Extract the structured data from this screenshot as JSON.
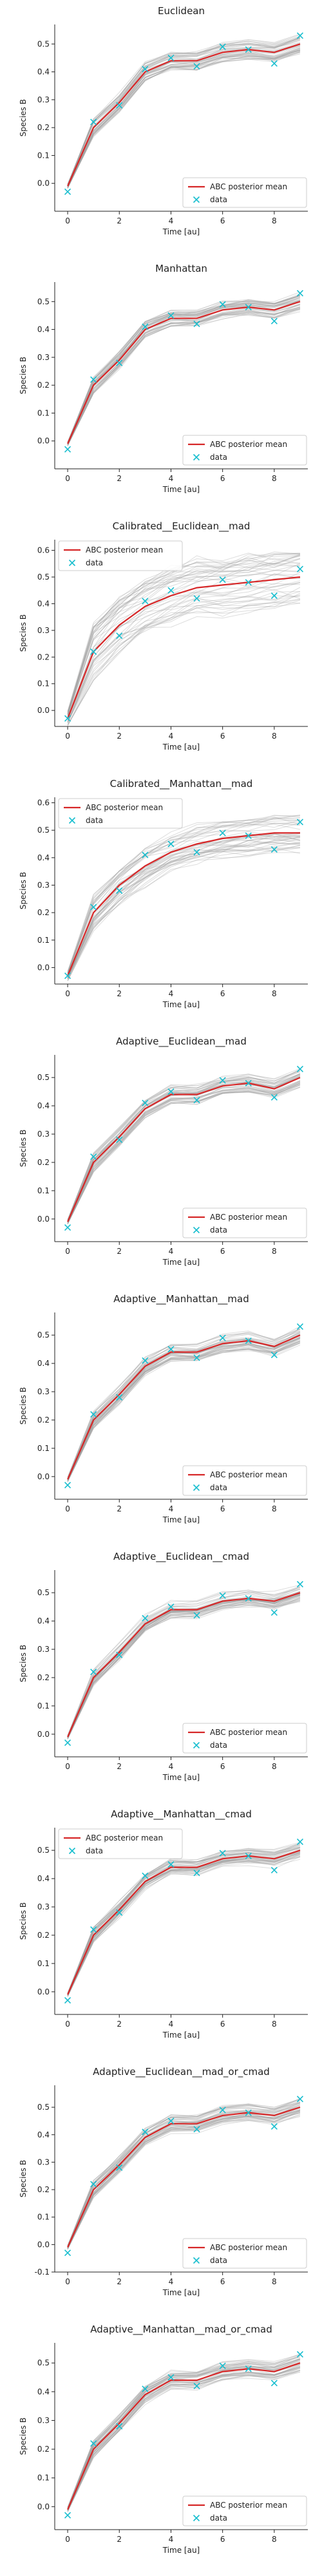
{
  "figure": {
    "description_free": true
  },
  "colors": {
    "mean_line": "#d62728",
    "data_marker": "#17becf",
    "posterior_lines": "#9e9e9e",
    "axis": "#222222"
  },
  "legend_labels": {
    "mean": "ABC posterior mean",
    "data": "data"
  },
  "chart_data": [
    {
      "type": "line",
      "title": "Euclidean",
      "xlabel": "Time [au]",
      "ylabel": "Species B",
      "xlim": [
        -0.5,
        9.3
      ],
      "ylim": [
        -0.1,
        0.57
      ],
      "yticks": [
        0.0,
        0.1,
        0.2,
        0.3,
        0.4,
        0.5
      ],
      "xticks": [
        0,
        2,
        4,
        6,
        8
      ],
      "legend_loc": "lower-right",
      "x": [
        0,
        1,
        2,
        3,
        4,
        5,
        6,
        7,
        8,
        9
      ],
      "series": [
        {
          "name": "ABC posterior mean",
          "values": [
            -0.01,
            0.2,
            0.29,
            0.4,
            0.44,
            0.44,
            0.47,
            0.48,
            0.47,
            0.5
          ]
        },
        {
          "name": "data",
          "values": [
            -0.03,
            0.22,
            0.28,
            0.41,
            0.45,
            0.42,
            0.49,
            0.48,
            0.43,
            0.53
          ]
        }
      ],
      "band": 0.03
    },
    {
      "type": "line",
      "title": "Manhattan",
      "xlabel": "Time [au]",
      "ylabel": "Species B",
      "xlim": [
        -0.5,
        9.3
      ],
      "ylim": [
        -0.1,
        0.57
      ],
      "yticks": [
        0.0,
        0.1,
        0.2,
        0.3,
        0.4,
        0.5
      ],
      "xticks": [
        0,
        2,
        4,
        6,
        8
      ],
      "legend_loc": "lower-right",
      "x": [
        0,
        1,
        2,
        3,
        4,
        5,
        6,
        7,
        8,
        9
      ],
      "series": [
        {
          "name": "ABC posterior mean",
          "values": [
            -0.01,
            0.2,
            0.29,
            0.4,
            0.44,
            0.44,
            0.47,
            0.48,
            0.47,
            0.5
          ]
        },
        {
          "name": "data",
          "values": [
            -0.03,
            0.22,
            0.28,
            0.41,
            0.45,
            0.42,
            0.49,
            0.48,
            0.43,
            0.53
          ]
        }
      ],
      "band": 0.03
    },
    {
      "type": "line",
      "title": "Calibrated__Euclidean__mad",
      "xlabel": "Time [au]",
      "ylabel": "Species B",
      "xlim": [
        -0.5,
        9.3
      ],
      "ylim": [
        -0.06,
        0.64
      ],
      "yticks": [
        0.0,
        0.1,
        0.2,
        0.3,
        0.4,
        0.5,
        0.6
      ],
      "xticks": [
        0,
        2,
        4,
        6,
        8
      ],
      "legend_loc": "top-left",
      "x": [
        0,
        1,
        2,
        3,
        4,
        5,
        6,
        7,
        8,
        9
      ],
      "series": [
        {
          "name": "ABC posterior mean",
          "values": [
            -0.03,
            0.22,
            0.32,
            0.39,
            0.43,
            0.46,
            0.47,
            0.48,
            0.49,
            0.5
          ]
        },
        {
          "name": "data",
          "values": [
            -0.03,
            0.22,
            0.28,
            0.41,
            0.45,
            0.42,
            0.49,
            0.48,
            0.43,
            0.53
          ]
        }
      ],
      "band": 0.1
    },
    {
      "type": "line",
      "title": "Calibrated__Manhattan__mad",
      "xlabel": "Time [au]",
      "ylabel": "Species B",
      "xlim": [
        -0.5,
        9.3
      ],
      "ylim": [
        -0.06,
        0.62
      ],
      "yticks": [
        0.0,
        0.1,
        0.2,
        0.3,
        0.4,
        0.5,
        0.6
      ],
      "xticks": [
        0,
        2,
        4,
        6,
        8
      ],
      "legend_loc": "top-left",
      "x": [
        0,
        1,
        2,
        3,
        4,
        5,
        6,
        7,
        8,
        9
      ],
      "series": [
        {
          "name": "ABC posterior mean",
          "values": [
            -0.03,
            0.2,
            0.3,
            0.37,
            0.42,
            0.45,
            0.47,
            0.48,
            0.49,
            0.49
          ]
        },
        {
          "name": "data",
          "values": [
            -0.03,
            0.22,
            0.28,
            0.41,
            0.45,
            0.42,
            0.49,
            0.48,
            0.43,
            0.53
          ]
        }
      ],
      "band": 0.07
    },
    {
      "type": "line",
      "title": "Adaptive__Euclidean__mad",
      "xlabel": "Time [au]",
      "ylabel": "Species B",
      "xlim": [
        -0.5,
        9.3
      ],
      "ylim": [
        -0.08,
        0.58
      ],
      "yticks": [
        0.0,
        0.1,
        0.2,
        0.3,
        0.4,
        0.5
      ],
      "xticks": [
        0,
        2,
        4,
        6,
        8
      ],
      "legend_loc": "lower-right",
      "x": [
        0,
        1,
        2,
        3,
        4,
        5,
        6,
        7,
        8,
        9
      ],
      "series": [
        {
          "name": "ABC posterior mean",
          "values": [
            -0.01,
            0.2,
            0.29,
            0.39,
            0.44,
            0.44,
            0.47,
            0.48,
            0.46,
            0.5
          ]
        },
        {
          "name": "data",
          "values": [
            -0.03,
            0.22,
            0.28,
            0.41,
            0.45,
            0.42,
            0.49,
            0.48,
            0.43,
            0.53
          ]
        }
      ],
      "band": 0.03
    },
    {
      "type": "line",
      "title": "Adaptive__Manhattan__mad",
      "xlabel": "Time [au]",
      "ylabel": "Species B",
      "xlim": [
        -0.5,
        9.3
      ],
      "ylim": [
        -0.08,
        0.58
      ],
      "yticks": [
        0.0,
        0.1,
        0.2,
        0.3,
        0.4,
        0.5
      ],
      "xticks": [
        0,
        2,
        4,
        6,
        8
      ],
      "legend_loc": "lower-right",
      "x": [
        0,
        1,
        2,
        3,
        4,
        5,
        6,
        7,
        8,
        9
      ],
      "series": [
        {
          "name": "ABC posterior mean",
          "values": [
            -0.01,
            0.2,
            0.29,
            0.39,
            0.44,
            0.44,
            0.47,
            0.48,
            0.46,
            0.5
          ]
        },
        {
          "name": "data",
          "values": [
            -0.03,
            0.22,
            0.28,
            0.41,
            0.45,
            0.42,
            0.49,
            0.48,
            0.43,
            0.53
          ]
        }
      ],
      "band": 0.03
    },
    {
      "type": "line",
      "title": "Adaptive__Euclidean__cmad",
      "xlabel": "Time [au]",
      "ylabel": "Species B",
      "xlim": [
        -0.5,
        9.3
      ],
      "ylim": [
        -0.08,
        0.58
      ],
      "yticks": [
        0.0,
        0.1,
        0.2,
        0.3,
        0.4,
        0.5
      ],
      "xticks": [
        0,
        2,
        4,
        6,
        8
      ],
      "legend_loc": "lower-right",
      "x": [
        0,
        1,
        2,
        3,
        4,
        5,
        6,
        7,
        8,
        9
      ],
      "series": [
        {
          "name": "ABC posterior mean",
          "values": [
            -0.01,
            0.2,
            0.29,
            0.39,
            0.44,
            0.44,
            0.47,
            0.48,
            0.47,
            0.5
          ]
        },
        {
          "name": "data",
          "values": [
            -0.03,
            0.22,
            0.28,
            0.41,
            0.45,
            0.42,
            0.49,
            0.48,
            0.43,
            0.53
          ]
        }
      ],
      "band": 0.03
    },
    {
      "type": "line",
      "title": "Adaptive__Manhattan__cmad",
      "xlabel": "Time [au]",
      "ylabel": "Species B",
      "xlim": [
        -0.5,
        9.3
      ],
      "ylim": [
        -0.08,
        0.58
      ],
      "yticks": [
        0.0,
        0.1,
        0.2,
        0.3,
        0.4,
        0.5
      ],
      "xticks": [
        0,
        2,
        4,
        6,
        8
      ],
      "legend_loc": "top-left",
      "x": [
        0,
        1,
        2,
        3,
        4,
        5,
        6,
        7,
        8,
        9
      ],
      "series": [
        {
          "name": "ABC posterior mean",
          "values": [
            -0.01,
            0.2,
            0.29,
            0.39,
            0.44,
            0.44,
            0.47,
            0.48,
            0.47,
            0.5
          ]
        },
        {
          "name": "data",
          "values": [
            -0.03,
            0.22,
            0.28,
            0.41,
            0.45,
            0.42,
            0.49,
            0.48,
            0.43,
            0.53
          ]
        }
      ],
      "band": 0.03
    },
    {
      "type": "line",
      "title": "Adaptive__Euclidean__mad_or_cmad",
      "xlabel": "Time [au]",
      "ylabel": "Species B",
      "xlim": [
        -0.5,
        9.3
      ],
      "ylim": [
        -0.1,
        0.58
      ],
      "yticks": [
        -0.1,
        0.0,
        0.1,
        0.2,
        0.3,
        0.4,
        0.5
      ],
      "xticks": [
        0,
        2,
        4,
        6,
        8
      ],
      "legend_loc": "lower-right",
      "x": [
        0,
        1,
        2,
        3,
        4,
        5,
        6,
        7,
        8,
        9
      ],
      "series": [
        {
          "name": "ABC posterior mean",
          "values": [
            -0.01,
            0.2,
            0.29,
            0.39,
            0.44,
            0.44,
            0.47,
            0.48,
            0.47,
            0.5
          ]
        },
        {
          "name": "data",
          "values": [
            -0.03,
            0.22,
            0.28,
            0.41,
            0.45,
            0.42,
            0.49,
            0.48,
            0.43,
            0.53
          ]
        }
      ],
      "band": 0.03
    },
    {
      "type": "line",
      "title": "Adaptive__Manhattan__mad_or_cmad",
      "xlabel": "Time [au]",
      "ylabel": "Species B",
      "xlim": [
        -0.5,
        9.3
      ],
      "ylim": [
        -0.08,
        0.57
      ],
      "yticks": [
        0.0,
        0.1,
        0.2,
        0.3,
        0.4,
        0.5
      ],
      "xticks": [
        0,
        2,
        4,
        6,
        8
      ],
      "legend_loc": "lower-right",
      "x": [
        0,
        1,
        2,
        3,
        4,
        5,
        6,
        7,
        8,
        9
      ],
      "series": [
        {
          "name": "ABC posterior mean",
          "values": [
            -0.01,
            0.2,
            0.29,
            0.39,
            0.44,
            0.44,
            0.47,
            0.48,
            0.47,
            0.5
          ]
        },
        {
          "name": "data",
          "values": [
            -0.03,
            0.22,
            0.28,
            0.41,
            0.45,
            0.42,
            0.49,
            0.48,
            0.43,
            0.53
          ]
        }
      ],
      "band": 0.03
    }
  ]
}
